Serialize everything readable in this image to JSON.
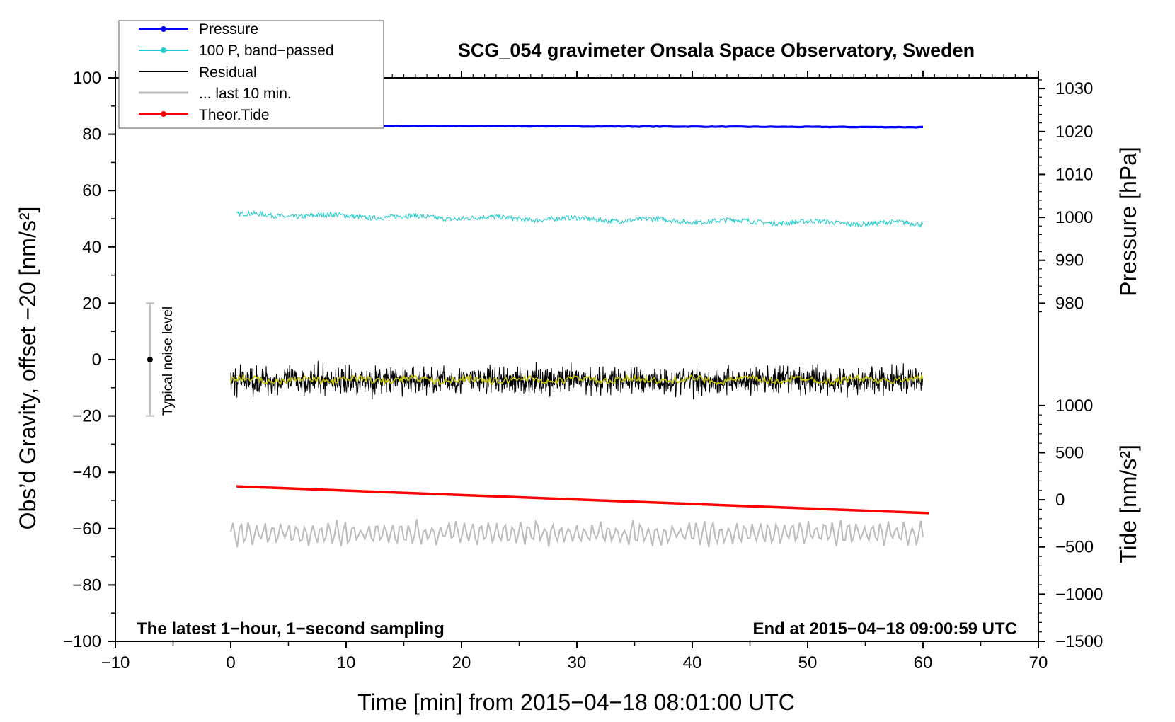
{
  "chart_data": {
    "type": "line",
    "title": "SCG_054 gravimeter Onsala Space Observatory, Sweden",
    "xlabel": "Time [min] from 2015−04−18 08:01:00 UTC",
    "ylabel_left": "Obs’d Gravity, offset −20 [nm/s²]",
    "ylabel_pressure": "Pressure [hPa]",
    "ylabel_tide": "Tide [nm/s²]",
    "note_left": "The latest 1−hour, 1−second sampling",
    "note_right": "End at 2015−04−18 09:00:59 UTC",
    "noise_label": "Typical noise level",
    "xlim": [
      -10,
      70
    ],
    "ylim": [
      -100,
      100
    ],
    "x_ticks": [
      -10,
      0,
      10,
      20,
      30,
      40,
      50,
      60,
      70
    ],
    "x_tick_labels": [
      "−10",
      "0",
      "10",
      "20",
      "30",
      "40",
      "50",
      "60",
      "70"
    ],
    "y_ticks": [
      -100,
      -80,
      -60,
      -40,
      -20,
      0,
      20,
      40,
      60,
      80,
      100
    ],
    "y_tick_labels": [
      "−100",
      "−80",
      "−60",
      "−40",
      "−20",
      "0",
      "20",
      "40",
      "60",
      "80",
      "100"
    ],
    "pressure_axis": {
      "ticks": [
        980,
        990,
        1000,
        1010,
        1020,
        1030
      ],
      "tick_labels": [
        "980",
        "990",
        "1000",
        "1010",
        "1020",
        "1030"
      ],
      "mapping": {
        "hpa_a": 980,
        "gravity_a": 20,
        "hpa_b": 1030,
        "gravity_b": 96.2
      }
    },
    "tide_axis": {
      "ticks": [
        -1500,
        -1000,
        -500,
        0,
        500,
        1000
      ],
      "tick_labels": [
        "−1500",
        "−1000",
        "−500",
        "0",
        "500",
        "1000"
      ],
      "mapping": {
        "tide_a": -1500,
        "gravity_a": -100,
        "tide_b": 1000,
        "gravity_b": -16.3
      }
    },
    "noise_bar": {
      "x": -7,
      "center": 0,
      "low": -20,
      "high": 20
    },
    "legend": [
      {
        "label": "Pressure",
        "color": "#0000ff",
        "marker": true
      },
      {
        "label": "100 P, band−passed",
        "color": "#22cccc",
        "marker": true
      },
      {
        "label": "Residual",
        "color": "#000000",
        "marker": false
      },
      {
        "label": "... last 10 min.",
        "color": "#bbbbbb",
        "marker": false
      },
      {
        "label": "Theor.Tide",
        "color": "#ff0000",
        "marker": true
      }
    ],
    "series": [
      {
        "name": "Pressure",
        "color": "#0000ff",
        "x_range": [
          0,
          60
        ],
        "y_start": 83.1,
        "y_end": 82.5
      },
      {
        "name": "100 P, band−passed",
        "color": "#22cccc",
        "x_range": [
          0.5,
          60
        ],
        "y_start": 51.4,
        "y_end": 48.2,
        "noise": 0.9
      },
      {
        "name": "Residual",
        "color": "#000000",
        "x_range": [
          0,
          60
        ],
        "y_mean": -7.4,
        "noise": 4.5
      },
      {
        "name": "Residual smoothed",
        "color": "#c8c800",
        "x_range": [
          0,
          60
        ],
        "y_mean": -7.2,
        "noise": 1.1
      },
      {
        "name": "... last 10 min.",
        "color": "#bbbbbb",
        "x_range": [
          0,
          60
        ],
        "y_mean": -61.8,
        "noise": 3.2
      },
      {
        "name": "Theor.Tide",
        "color": "#ff0000",
        "x_range": [
          0.5,
          60.5
        ],
        "y_start": -45,
        "y_end": -54.5
      }
    ]
  }
}
